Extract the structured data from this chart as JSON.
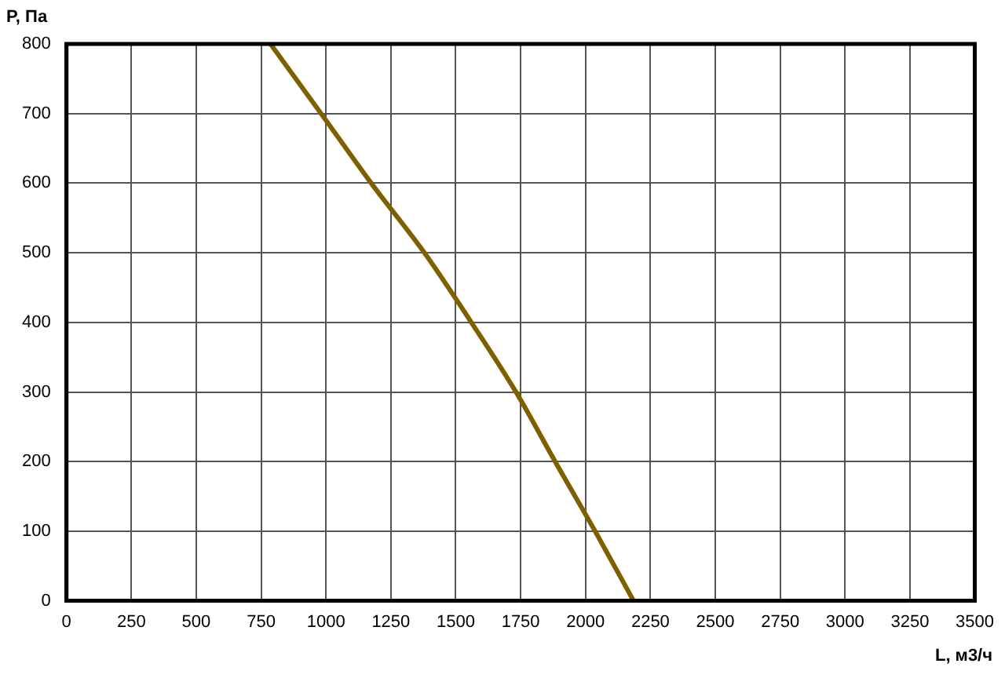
{
  "chart_data": {
    "type": "line",
    "xlabel": "L, м3/ч",
    "ylabel": "P, Па",
    "x": [
      786,
      981,
      1174,
      1379,
      1560,
      1732,
      1883,
      2037,
      2185
    ],
    "series": [
      {
        "color": "#7f6000",
        "values": [
          800,
          700,
          600,
          500,
          400,
          300,
          200,
          100,
          0
        ]
      }
    ],
    "xlim": [
      0,
      3500
    ],
    "xticks": [
      0,
      250,
      500,
      750,
      1000,
      1250,
      1500,
      1750,
      2000,
      2250,
      2500,
      2750,
      3000,
      3250,
      3500
    ],
    "ylim": [
      0,
      800
    ],
    "yticks": [
      0,
      100,
      200,
      300,
      400,
      500,
      600,
      700,
      800
    ],
    "grid": true,
    "legend": false,
    "marker": "none",
    "line_style": "solid"
  }
}
